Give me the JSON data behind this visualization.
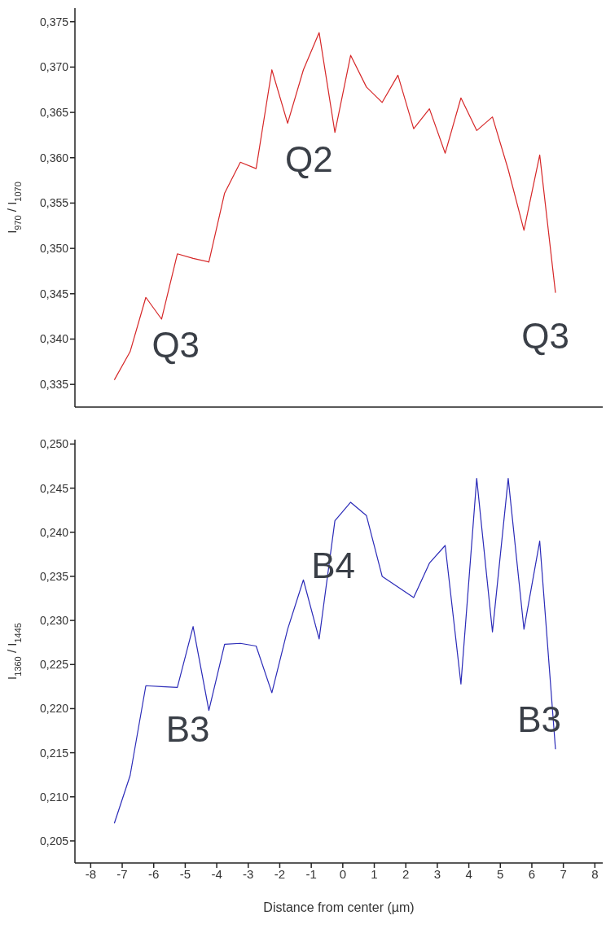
{
  "chart_data": [
    {
      "type": "line",
      "ylabel": "I$_{970}$ / I$_{1070}$",
      "tick_labels": "y",
      "grid": false,
      "legend": false,
      "marker": "none",
      "line_style": "solid",
      "x": [
        -7.25,
        -6.75,
        -6.25,
        -5.75,
        -5.25,
        -4.75,
        -4.25,
        -3.75,
        -3.25,
        -2.75,
        -2.25,
        -1.75,
        -1.25,
        -0.75,
        -0.25,
        0.25,
        0.75,
        1.25,
        1.75,
        2.25,
        2.75,
        3.25,
        3.75,
        4.25,
        4.75,
        5.25,
        5.75,
        6.25,
        6.75
      ],
      "series": [
        {
          "color": "#d62728",
          "values": [
            0.3355,
            0.3386,
            0.3446,
            0.3422,
            0.3494,
            0.3489,
            0.3485,
            0.3561,
            0.3595,
            0.3588,
            0.3697,
            0.3638,
            0.3697,
            0.3738,
            0.3628,
            0.3713,
            0.3678,
            0.3661,
            0.3691,
            0.3632,
            0.3654,
            0.3605,
            0.3666,
            0.363,
            0.3645,
            0.3587,
            0.352,
            0.3603,
            0.3451
          ]
        }
      ],
      "xlim": [
        -8.5,
        8.25
      ],
      "xticks": [
        -8,
        -7,
        -6,
        -5,
        -4,
        -3,
        -2,
        -1,
        0,
        1,
        2,
        3,
        4,
        5,
        6,
        7,
        8
      ],
      "ylim": [
        0.3325,
        0.3765
      ],
      "yticks": [
        {
          "value": 0.335,
          "label": "0,335"
        },
        {
          "value": 0.34,
          "label": "0,340"
        },
        {
          "value": 0.345,
          "label": "0,345"
        },
        {
          "value": 0.35,
          "label": "0,350"
        },
        {
          "value": 0.355,
          "label": "0,355"
        },
        {
          "value": 0.36,
          "label": "0,360"
        },
        {
          "value": 0.365,
          "label": "0,365"
        },
        {
          "value": 0.37,
          "label": "0,370"
        },
        {
          "value": 0.375,
          "label": "0,375"
        }
      ],
      "annotations": [
        "Q3",
        "Q2",
        "Q3"
      ]
    },
    {
      "type": "line",
      "xlabel": "Distance from center (µm)",
      "ylabel": "I$_{1360}$ / I$_{1445}$",
      "grid": false,
      "legend": false,
      "marker": "none",
      "line_style": "solid",
      "x": [
        -7.25,
        -6.75,
        -6.25,
        -5.75,
        -5.25,
        -4.75,
        -4.25,
        -3.75,
        -3.25,
        -2.75,
        -2.25,
        -1.75,
        -1.25,
        -0.75,
        -0.25,
        0.25,
        0.75,
        1.25,
        1.75,
        2.25,
        2.75,
        3.25,
        3.75,
        4.25,
        4.75,
        5.25,
        5.75,
        6.25,
        6.75
      ],
      "series": [
        {
          "color": "#2b2bb8",
          "values": [
            0.207,
            0.2124,
            0.2226,
            0.2225,
            0.2224,
            0.2293,
            0.2198,
            0.2273,
            0.2274,
            0.2271,
            0.2218,
            0.229,
            0.2346,
            0.2279,
            0.2413,
            0.2434,
            0.2419,
            0.235,
            0.2338,
            0.2326,
            0.2365,
            0.2385,
            0.2228,
            0.2461,
            0.2287,
            0.2461,
            0.229,
            0.239,
            0.2154
          ]
        }
      ],
      "xlim": [
        -8.5,
        8.25
      ],
      "xticks": [
        -8,
        -7,
        -6,
        -5,
        -4,
        -3,
        -2,
        -1,
        0,
        1,
        2,
        3,
        4,
        5,
        6,
        7,
        8
      ],
      "ylim": [
        0.2025,
        0.2505
      ],
      "yticks": [
        {
          "value": 0.205,
          "label": "0,205"
        },
        {
          "value": 0.21,
          "label": "0,210"
        },
        {
          "value": 0.215,
          "label": "0,215"
        },
        {
          "value": 0.22,
          "label": "0,220"
        },
        {
          "value": 0.225,
          "label": "0,225"
        },
        {
          "value": 0.23,
          "label": "0,230"
        },
        {
          "value": 0.235,
          "label": "0,235"
        },
        {
          "value": 0.24,
          "label": "0,240"
        },
        {
          "value": 0.245,
          "label": "0,245"
        },
        {
          "value": 0.25,
          "label": "0,250"
        }
      ],
      "annotations": [
        "B3",
        "B4",
        "B3"
      ]
    }
  ]
}
